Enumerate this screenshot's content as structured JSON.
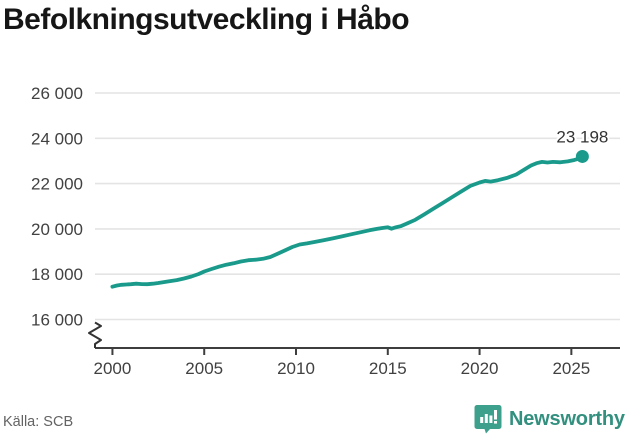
{
  "header": {
    "title": "Befolkningsutveckling i Håbo"
  },
  "footer": {
    "source_label": "Källa: SCB",
    "brand": "Newsworthy"
  },
  "colors": {
    "line": "#199a8b",
    "grid": "#e4e4e4",
    "axis": "#3e3e3e",
    "tick_label": "#414141",
    "end_label": "#333333",
    "brand_teal": "#3da08d"
  },
  "chart_data": {
    "type": "line",
    "title": "Befolkningsutveckling i Håbo",
    "xlabel": "",
    "ylabel": "",
    "grid": "horizontal",
    "legend": "none",
    "axis_break": true,
    "xlim": [
      1999.05,
      2027.65
    ],
    "ylim": [
      16000,
      26000
    ],
    "x_ticks": [
      2000,
      2005,
      2010,
      2015,
      2020,
      2025
    ],
    "y_ticks": [
      {
        "value": 16000,
        "label": "16 000"
      },
      {
        "value": 18000,
        "label": "18 000"
      },
      {
        "value": 20000,
        "label": "20 000"
      },
      {
        "value": 22000,
        "label": "22 000"
      },
      {
        "value": 24000,
        "label": "24 000"
      },
      {
        "value": 26000,
        "label": "26 000"
      }
    ],
    "end_label": "23 198",
    "latest_value": 23198,
    "source": "SCB",
    "series": [
      {
        "name": "Befolkningsutveckling i Håbo",
        "points": [
          [
            2000.0,
            17450
          ],
          [
            2000.25,
            17500
          ],
          [
            2000.5,
            17530
          ],
          [
            2000.75,
            17545
          ],
          [
            2001.0,
            17560
          ],
          [
            2001.3,
            17580
          ],
          [
            2001.6,
            17565
          ],
          [
            2001.9,
            17560
          ],
          [
            2002.2,
            17580
          ],
          [
            2002.5,
            17610
          ],
          [
            2002.8,
            17650
          ],
          [
            2003.1,
            17690
          ],
          [
            2003.5,
            17740
          ],
          [
            2003.9,
            17810
          ],
          [
            2004.3,
            17900
          ],
          [
            2004.7,
            18010
          ],
          [
            2005.0,
            18120
          ],
          [
            2005.4,
            18230
          ],
          [
            2005.8,
            18330
          ],
          [
            2006.2,
            18420
          ],
          [
            2006.6,
            18480
          ],
          [
            2007.0,
            18560
          ],
          [
            2007.4,
            18620
          ],
          [
            2007.8,
            18640
          ],
          [
            2008.2,
            18680
          ],
          [
            2008.6,
            18760
          ],
          [
            2009.0,
            18900
          ],
          [
            2009.4,
            19050
          ],
          [
            2009.8,
            19200
          ],
          [
            2010.2,
            19310
          ],
          [
            2010.6,
            19360
          ],
          [
            2011.0,
            19420
          ],
          [
            2011.5,
            19500
          ],
          [
            2012.0,
            19580
          ],
          [
            2012.5,
            19670
          ],
          [
            2013.0,
            19760
          ],
          [
            2013.5,
            19850
          ],
          [
            2014.0,
            19940
          ],
          [
            2014.4,
            20000
          ],
          [
            2014.7,
            20040
          ],
          [
            2015.0,
            20070
          ],
          [
            2015.2,
            20010
          ],
          [
            2015.4,
            20060
          ],
          [
            2015.7,
            20120
          ],
          [
            2016.0,
            20220
          ],
          [
            2016.5,
            20400
          ],
          [
            2017.0,
            20650
          ],
          [
            2017.5,
            20900
          ],
          [
            2018.0,
            21150
          ],
          [
            2018.5,
            21400
          ],
          [
            2019.0,
            21650
          ],
          [
            2019.5,
            21900
          ],
          [
            2020.0,
            22050
          ],
          [
            2020.3,
            22120
          ],
          [
            2020.6,
            22090
          ],
          [
            2021.0,
            22150
          ],
          [
            2021.5,
            22250
          ],
          [
            2022.0,
            22400
          ],
          [
            2022.4,
            22600
          ],
          [
            2022.8,
            22800
          ],
          [
            2023.1,
            22900
          ],
          [
            2023.4,
            22960
          ],
          [
            2023.7,
            22930
          ],
          [
            2024.0,
            22960
          ],
          [
            2024.4,
            22940
          ],
          [
            2024.8,
            22980
          ],
          [
            2025.1,
            23030
          ],
          [
            2025.4,
            23100
          ],
          [
            2025.6,
            23198
          ]
        ]
      }
    ]
  }
}
